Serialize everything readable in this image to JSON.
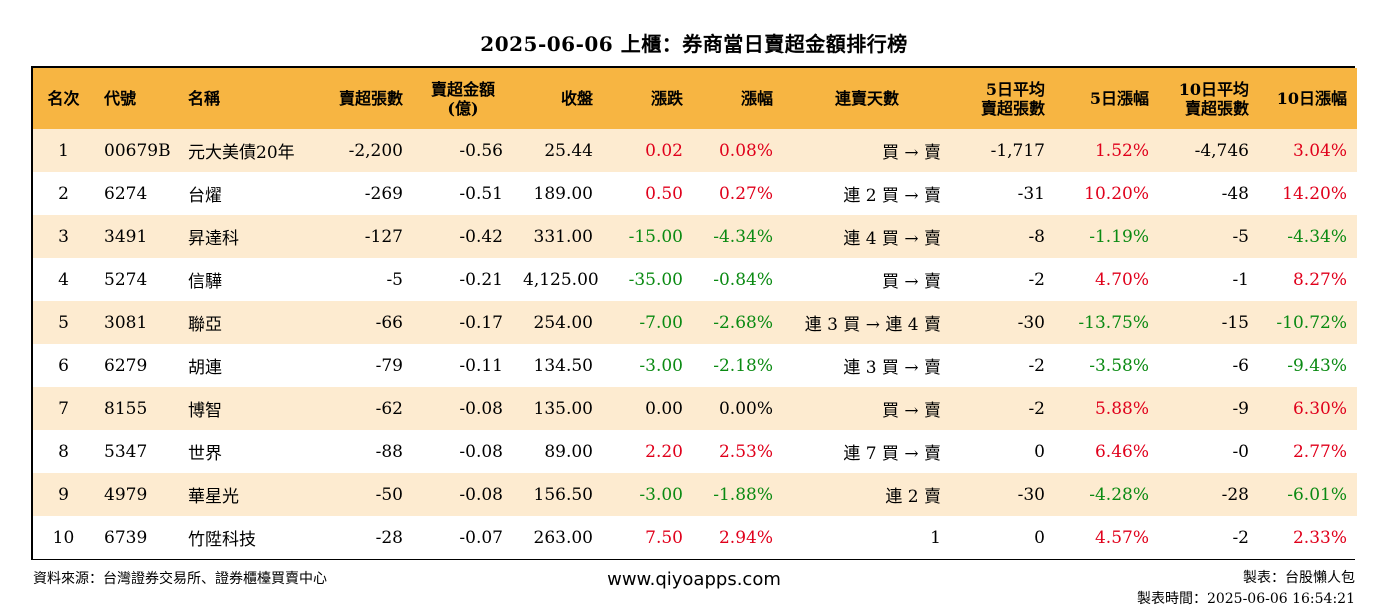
{
  "title": "2025-06-06 上櫃：券商當日賣超金額排行榜",
  "headers": [
    "名次",
    "代號",
    "名稱",
    "賣超張數",
    "賣超金額\n(億)",
    "收盤",
    "漲跌",
    "漲幅",
    "連賣天數",
    "5日平均\n賣超張數",
    "5日漲幅",
    "10日平均\n賣超張數",
    "10日漲幅"
  ],
  "rows": [
    [
      "1",
      "00679B",
      "元大美債20年",
      "-2,200",
      "-0.56",
      "25.44",
      "0.02",
      "0.08%",
      "買 → 賣",
      "-1,717",
      "1.52%",
      "-4,746",
      "3.04%"
    ],
    [
      "2",
      "6274",
      "台燿",
      "-269",
      "-0.51",
      "189.00",
      "0.50",
      "0.27%",
      "連 2 買 → 賣",
      "-31",
      "10.20%",
      "-48",
      "14.20%"
    ],
    [
      "3",
      "3491",
      "昇達科",
      "-127",
      "-0.42",
      "331.00",
      "-15.00",
      "-4.34%",
      "連 4 買 → 賣",
      "-8",
      "-1.19%",
      "-5",
      "-4.34%"
    ],
    [
      "4",
      "5274",
      "信驊",
      "-5",
      "-0.21",
      "4,125.00",
      "-35.00",
      "-0.84%",
      "買 → 賣",
      "-2",
      "4.70%",
      "-1",
      "8.27%"
    ],
    [
      "5",
      "3081",
      "聯亞",
      "-66",
      "-0.17",
      "254.00",
      "-7.00",
      "-2.68%",
      "連 3 買 → 連 4 賣",
      "-30",
      "-13.75%",
      "-15",
      "-10.72%"
    ],
    [
      "6",
      "6279",
      "胡連",
      "-79",
      "-0.11",
      "134.50",
      "-3.00",
      "-2.18%",
      "連 3 買 → 賣",
      "-2",
      "-3.58%",
      "-6",
      "-9.43%"
    ],
    [
      "7",
      "8155",
      "博智",
      "-62",
      "-0.08",
      "135.00",
      "0.00",
      "0.00%",
      "買 → 賣",
      "-2",
      "5.88%",
      "-9",
      "6.30%"
    ],
    [
      "8",
      "5347",
      "世界",
      "-88",
      "-0.08",
      "89.00",
      "2.20",
      "2.53%",
      "連 7 買 → 賣",
      "0",
      "6.46%",
      "-0",
      "2.77%"
    ],
    [
      "9",
      "4979",
      "華星光",
      "-50",
      "-0.08",
      "156.50",
      "-3.00",
      "-1.88%",
      "連 2 賣",
      "-30",
      "-4.28%",
      "-28",
      "-6.01%"
    ],
    [
      "10",
      "6739",
      "竹陞科技",
      "-28",
      "-0.07",
      "263.00",
      "7.50",
      "2.94%",
      "1",
      "0",
      "4.57%",
      "-2",
      "2.33%"
    ]
  ],
  "colors": {
    "header_bg": "#f7b542",
    "row_alt_bg": "#fdebd0",
    "up": "#e0001b",
    "down": "#0a8a12"
  },
  "footer": {
    "source": "資料來源：台灣證券交易所、證券櫃檯買賣中心",
    "site": "www.qiyoapps.com",
    "maker": "製表：台股懶人包",
    "made_time": "製表時間：2025-06-06 16:54:21"
  }
}
